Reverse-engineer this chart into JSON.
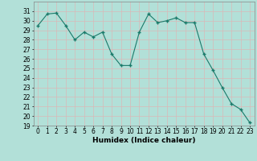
{
  "x": [
    0,
    1,
    2,
    3,
    4,
    5,
    6,
    7,
    8,
    9,
    10,
    11,
    12,
    13,
    14,
    15,
    16,
    17,
    18,
    19,
    20,
    21,
    22,
    23
  ],
  "y": [
    29.5,
    30.7,
    30.8,
    29.5,
    28.0,
    28.8,
    28.3,
    28.8,
    26.5,
    25.3,
    25.3,
    28.8,
    30.7,
    29.8,
    30.0,
    30.3,
    29.8,
    29.8,
    26.5,
    24.8,
    23.0,
    21.3,
    20.7,
    19.3
  ],
  "line_color": "#1a7a6a",
  "marker_color": "#1a7a6a",
  "bg_color": "#b2e0d8",
  "grid_color": "#d9b8b8",
  "xlabel": "Humidex (Indice chaleur)",
  "ylim": [
    19,
    32
  ],
  "xlim_min": -0.5,
  "xlim_max": 23.5,
  "yticks": [
    19,
    20,
    21,
    22,
    23,
    24,
    25,
    26,
    27,
    28,
    29,
    30,
    31
  ],
  "xticks": [
    0,
    1,
    2,
    3,
    4,
    5,
    6,
    7,
    8,
    9,
    10,
    11,
    12,
    13,
    14,
    15,
    16,
    17,
    18,
    19,
    20,
    21,
    22,
    23
  ],
  "label_fontsize": 6.5,
  "tick_fontsize": 5.5
}
